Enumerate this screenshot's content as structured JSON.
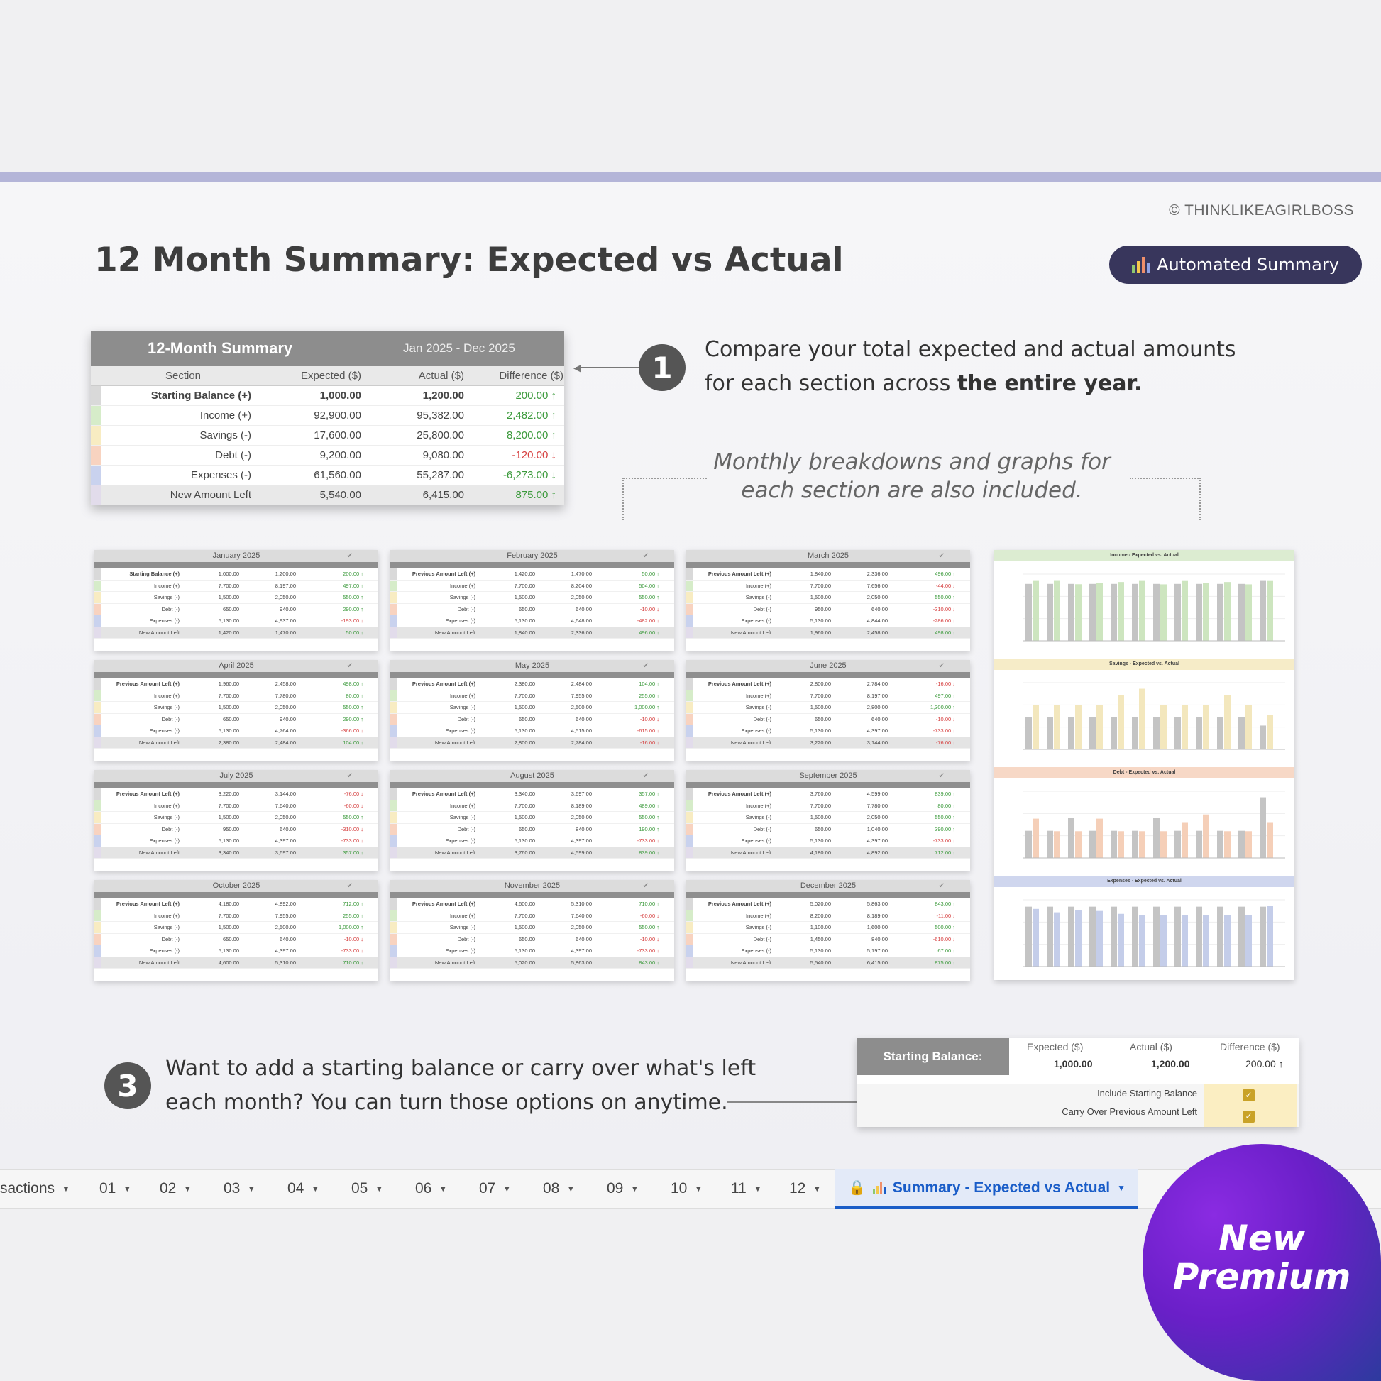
{
  "copyright": "© THINKLIKEAGIRLBOSS",
  "title": "12 Month Summary: Expected vs Actual",
  "pill_label": "Automated Summary",
  "summary": {
    "title": "12-Month Summary",
    "range": "Jan 2025 - Dec 2025",
    "columns": [
      "Section",
      "Expected ($)",
      "Actual ($)",
      "Difference ($)"
    ],
    "rows": [
      {
        "section": "Starting Balance (+)",
        "expected": "1,000.00",
        "actual": "1,200.00",
        "diff": "200.00 ↑",
        "sign": "pos",
        "color": "#d9d9d9"
      },
      {
        "section": "Income (+)",
        "expected": "92,900.00",
        "actual": "95,382.00",
        "diff": "2,482.00 ↑",
        "sign": "pos",
        "color": "#d6ecc9"
      },
      {
        "section": "Savings (-)",
        "expected": "17,600.00",
        "actual": "25,800.00",
        "diff": "8,200.00 ↑",
        "sign": "pos",
        "color": "#f8ecc2"
      },
      {
        "section": "Debt (-)",
        "expected": "9,200.00",
        "actual": "9,080.00",
        "diff": "-120.00 ↓",
        "sign": "neg",
        "color": "#f8d3c0"
      },
      {
        "section": "Expenses (-)",
        "expected": "61,560.00",
        "actual": "55,287.00",
        "diff": "-6,273.00 ↓",
        "sign": "pos",
        "color": "#c9d2ee"
      },
      {
        "section": "New Amount Left",
        "expected": "5,540.00",
        "actual": "6,415.00",
        "diff": "875.00 ↑",
        "sign": "pos",
        "color": "#e2dceb"
      }
    ]
  },
  "step1": {
    "number": "1",
    "line1": "Compare your total expected and actual amounts",
    "line2_plain": "for each section across ",
    "line2_bold": "the entire year."
  },
  "note": {
    "line1": "Monthly breakdowns and graphs for",
    "line2": "each section are also included."
  },
  "months": [
    {
      "name": "January 2025",
      "first": "Starting Balance (+)",
      "rows": [
        [
          "1,000.00",
          "1,200.00",
          "200.00 ↑"
        ],
        [
          "7,700.00",
          "8,197.00",
          "497.00 ↑"
        ],
        [
          "1,500.00",
          "2,050.00",
          "550.00 ↑"
        ],
        [
          "650.00",
          "940.00",
          "290.00 ↑"
        ],
        [
          "5,130.00",
          "4,937.00",
          "-193.00 ↓"
        ],
        [
          "1,420.00",
          "1,470.00",
          "50.00 ↑"
        ]
      ]
    },
    {
      "name": "February 2025",
      "first": "Previous Amount Left (+)",
      "rows": [
        [
          "1,420.00",
          "1,470.00",
          "50.00 ↑"
        ],
        [
          "7,700.00",
          "8,204.00",
          "504.00 ↑"
        ],
        [
          "1,500.00",
          "2,050.00",
          "550.00 ↑"
        ],
        [
          "650.00",
          "640.00",
          "-10.00 ↓"
        ],
        [
          "5,130.00",
          "4,648.00",
          "-482.00 ↓"
        ],
        [
          "1,840.00",
          "2,336.00",
          "496.00 ↑"
        ]
      ]
    },
    {
      "name": "March 2025",
      "first": "Previous Amount Left (+)",
      "rows": [
        [
          "1,840.00",
          "2,336.00",
          "496.00 ↑"
        ],
        [
          "7,700.00",
          "7,656.00",
          "-44.00 ↓"
        ],
        [
          "1,500.00",
          "2,050.00",
          "550.00 ↑"
        ],
        [
          "950.00",
          "640.00",
          "-310.00 ↓"
        ],
        [
          "5,130.00",
          "4,844.00",
          "-286.00 ↓"
        ],
        [
          "1,960.00",
          "2,458.00",
          "498.00 ↑"
        ]
      ]
    },
    {
      "name": "April 2025",
      "first": "Previous Amount Left (+)",
      "rows": [
        [
          "1,960.00",
          "2,458.00",
          "498.00 ↑"
        ],
        [
          "7,700.00",
          "7,780.00",
          "80.00 ↑"
        ],
        [
          "1,500.00",
          "2,050.00",
          "550.00 ↑"
        ],
        [
          "650.00",
          "940.00",
          "290.00 ↑"
        ],
        [
          "5,130.00",
          "4,764.00",
          "-366.00 ↓"
        ],
        [
          "2,380.00",
          "2,484.00",
          "104.00 ↑"
        ]
      ]
    },
    {
      "name": "May 2025",
      "first": "Previous Amount Left (+)",
      "rows": [
        [
          "2,380.00",
          "2,484.00",
          "104.00 ↑"
        ],
        [
          "7,700.00",
          "7,955.00",
          "255.00 ↑"
        ],
        [
          "1,500.00",
          "2,500.00",
          "1,000.00 ↑"
        ],
        [
          "650.00",
          "640.00",
          "-10.00 ↓"
        ],
        [
          "5,130.00",
          "4,515.00",
          "-615.00 ↓"
        ],
        [
          "2,800.00",
          "2,784.00",
          "-16.00 ↓"
        ]
      ]
    },
    {
      "name": "June 2025",
      "first": "Previous Amount Left (+)",
      "rows": [
        [
          "2,800.00",
          "2,784.00",
          "-16.00 ↓"
        ],
        [
          "7,700.00",
          "8,197.00",
          "497.00 ↑"
        ],
        [
          "1,500.00",
          "2,800.00",
          "1,300.00 ↑"
        ],
        [
          "650.00",
          "640.00",
          "-10.00 ↓"
        ],
        [
          "5,130.00",
          "4,397.00",
          "-733.00 ↓"
        ],
        [
          "3,220.00",
          "3,144.00",
          "-76.00 ↓"
        ]
      ]
    },
    {
      "name": "July 2025",
      "first": "Previous Amount Left (+)",
      "rows": [
        [
          "3,220.00",
          "3,144.00",
          "-76.00 ↓"
        ],
        [
          "7,700.00",
          "7,640.00",
          "-60.00 ↓"
        ],
        [
          "1,500.00",
          "2,050.00",
          "550.00 ↑"
        ],
        [
          "950.00",
          "640.00",
          "-310.00 ↓"
        ],
        [
          "5,130.00",
          "4,397.00",
          "-733.00 ↓"
        ],
        [
          "3,340.00",
          "3,697.00",
          "357.00 ↑"
        ]
      ]
    },
    {
      "name": "August 2025",
      "first": "Previous Amount Left (+)",
      "rows": [
        [
          "3,340.00",
          "3,697.00",
          "357.00 ↑"
        ],
        [
          "7,700.00",
          "8,189.00",
          "489.00 ↑"
        ],
        [
          "1,500.00",
          "2,050.00",
          "550.00 ↑"
        ],
        [
          "650.00",
          "840.00",
          "190.00 ↑"
        ],
        [
          "5,130.00",
          "4,397.00",
          "-733.00 ↓"
        ],
        [
          "3,760.00",
          "4,599.00",
          "839.00 ↑"
        ]
      ]
    },
    {
      "name": "September 2025",
      "first": "Previous Amount Left (+)",
      "rows": [
        [
          "3,760.00",
          "4,599.00",
          "839.00 ↑"
        ],
        [
          "7,700.00",
          "7,780.00",
          "80.00 ↑"
        ],
        [
          "1,500.00",
          "2,050.00",
          "550.00 ↑"
        ],
        [
          "650.00",
          "1,040.00",
          "390.00 ↑"
        ],
        [
          "5,130.00",
          "4,397.00",
          "-733.00 ↓"
        ],
        [
          "4,180.00",
          "4,892.00",
          "712.00 ↑"
        ]
      ]
    },
    {
      "name": "October 2025",
      "first": "Previous Amount Left (+)",
      "rows": [
        [
          "4,180.00",
          "4,892.00",
          "712.00 ↑"
        ],
        [
          "7,700.00",
          "7,955.00",
          "255.00 ↑"
        ],
        [
          "1,500.00",
          "2,500.00",
          "1,000.00 ↑"
        ],
        [
          "650.00",
          "640.00",
          "-10.00 ↓"
        ],
        [
          "5,130.00",
          "4,397.00",
          "-733.00 ↓"
        ],
        [
          "4,600.00",
          "5,310.00",
          "710.00 ↑"
        ]
      ]
    },
    {
      "name": "November 2025",
      "first": "Previous Amount Left (+)",
      "rows": [
        [
          "4,600.00",
          "5,310.00",
          "710.00 ↑"
        ],
        [
          "7,700.00",
          "7,640.00",
          "-60.00 ↓"
        ],
        [
          "1,500.00",
          "2,050.00",
          "550.00 ↑"
        ],
        [
          "650.00",
          "640.00",
          "-10.00 ↓"
        ],
        [
          "5,130.00",
          "4,397.00",
          "-733.00 ↓"
        ],
        [
          "5,020.00",
          "5,863.00",
          "843.00 ↑"
        ]
      ]
    },
    {
      "name": "December 2025",
      "first": "Previous Amount Left (+)",
      "rows": [
        [
          "5,020.00",
          "5,863.00",
          "843.00 ↑"
        ],
        [
          "8,200.00",
          "8,189.00",
          "-11.00 ↓"
        ],
        [
          "1,100.00",
          "1,600.00",
          "500.00 ↑"
        ],
        [
          "1,450.00",
          "840.00",
          "-610.00 ↓"
        ],
        [
          "5,130.00",
          "5,197.00",
          "67.00 ↑"
        ],
        [
          "5,540.00",
          "6,415.00",
          "875.00 ↑"
        ]
      ]
    }
  ],
  "month_row_labels": [
    "Income (+)",
    "Savings (-)",
    "Debt (-)",
    "Expenses (-)",
    "New Amount Left"
  ],
  "month_row_colors": [
    "#d9d9d9",
    "#d6ecc9",
    "#f8ecc2",
    "#f8d3c0",
    "#c9d2ee",
    "#e2dceb"
  ],
  "charts": [
    {
      "title": "Income - Expected vs. Actual",
      "header_color": "#dcecd1",
      "expected_color": "#c4c4c4",
      "actual_color": "#cde5bf",
      "expected": [
        7700,
        7700,
        7700,
        7700,
        7700,
        7700,
        7700,
        7700,
        7700,
        7700,
        7700,
        8200
      ],
      "actual": [
        8197,
        8204,
        7656,
        7780,
        7955,
        8197,
        7640,
        8189,
        7780,
        7955,
        7640,
        8189
      ]
    },
    {
      "title": "Savings - Expected vs. Actual",
      "header_color": "#f6ecc8",
      "expected_color": "#c4c4c4",
      "actual_color": "#f3e7bd",
      "expected": [
        1500,
        1500,
        1500,
        1500,
        1500,
        1500,
        1500,
        1500,
        1500,
        1500,
        1500,
        1100
      ],
      "actual": [
        2050,
        2050,
        2050,
        2050,
        2500,
        2800,
        2050,
        2050,
        2050,
        2500,
        2050,
        1600
      ]
    },
    {
      "title": "Debt - Expected vs. Actual",
      "header_color": "#f7d8c6",
      "expected_color": "#c4c4c4",
      "actual_color": "#f5cfb8",
      "expected": [
        650,
        650,
        950,
        650,
        650,
        650,
        950,
        650,
        650,
        650,
        650,
        1450
      ],
      "actual": [
        940,
        640,
        640,
        940,
        640,
        640,
        640,
        840,
        1040,
        640,
        640,
        840
      ]
    },
    {
      "title": "Expenses - Expected vs. Actual",
      "header_color": "#cfd6ee",
      "expected_color": "#c4c4c4",
      "actual_color": "#c4cde9",
      "expected": [
        5130,
        5130,
        5130,
        5130,
        5130,
        5130,
        5130,
        5130,
        5130,
        5130,
        5130,
        5130
      ],
      "actual": [
        4937,
        4648,
        4844,
        4764,
        4515,
        4397,
        4397,
        4397,
        4397,
        4397,
        4397,
        5197
      ]
    }
  ],
  "step3": {
    "number": "3",
    "line1": "Want to add a starting balance or carry over what's left",
    "line2": "each month? You can turn those options on anytime."
  },
  "starting_balance": {
    "label": "Starting Balance:",
    "headers": [
      "Expected ($)",
      "Actual ($)",
      "Difference ($)"
    ],
    "expected": "1,000.00",
    "actual": "1,200.00",
    "diff": "200.00 ↑",
    "option1": "Include Starting Balance",
    "option2": "Carry Over Previous Amount Left"
  },
  "tabs": [
    "sactions",
    "01",
    "02",
    "03",
    "04",
    "05",
    "06",
    "07",
    "08",
    "09",
    "10",
    "11",
    "12"
  ],
  "active_tab": "Summary - Expected vs Actual",
  "badge": {
    "line1": "New",
    "line2": "Premium"
  }
}
